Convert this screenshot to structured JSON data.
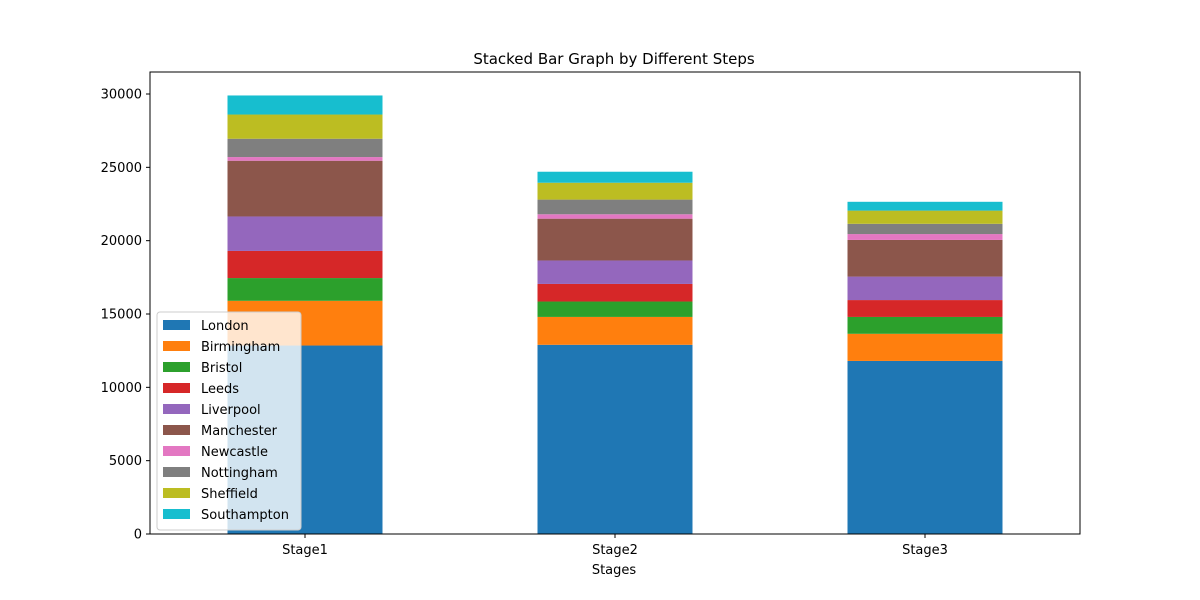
{
  "chart_data": {
    "type": "bar",
    "stacked": true,
    "title": "Stacked Bar Graph by Different Steps",
    "xlabel": "Stages",
    "ylabel": "",
    "categories": [
      "Stage1",
      "Stage2",
      "Stage3"
    ],
    "ylim": [
      0,
      31500
    ],
    "yticks": [
      0,
      5000,
      10000,
      15000,
      20000,
      25000,
      30000
    ],
    "legend_position": "lower-left",
    "series": [
      {
        "name": "London",
        "color": "#1f77b4",
        "values": [
          12850,
          12900,
          11800
        ]
      },
      {
        "name": "Birmingham",
        "color": "#ff7f0e",
        "values": [
          3050,
          1900,
          1850
        ]
      },
      {
        "name": "Bristol",
        "color": "#2ca02c",
        "values": [
          1550,
          1050,
          1150
        ]
      },
      {
        "name": "Leeds",
        "color": "#d62728",
        "values": [
          1850,
          1200,
          1150
        ]
      },
      {
        "name": "Liverpool",
        "color": "#9467bd",
        "values": [
          2350,
          1600,
          1600
        ]
      },
      {
        "name": "Manchester",
        "color": "#8c564b",
        "values": [
          3800,
          2850,
          2500
        ]
      },
      {
        "name": "Newcastle",
        "color": "#e377c2",
        "values": [
          250,
          300,
          400
        ]
      },
      {
        "name": "Nottingham",
        "color": "#7f7f7f",
        "values": [
          1250,
          1000,
          700
        ]
      },
      {
        "name": "Sheffield",
        "color": "#bcbd22",
        "values": [
          1650,
          1150,
          900
        ]
      },
      {
        "name": "Southampton",
        "color": "#17becf",
        "values": [
          1300,
          750,
          600
        ]
      }
    ]
  }
}
